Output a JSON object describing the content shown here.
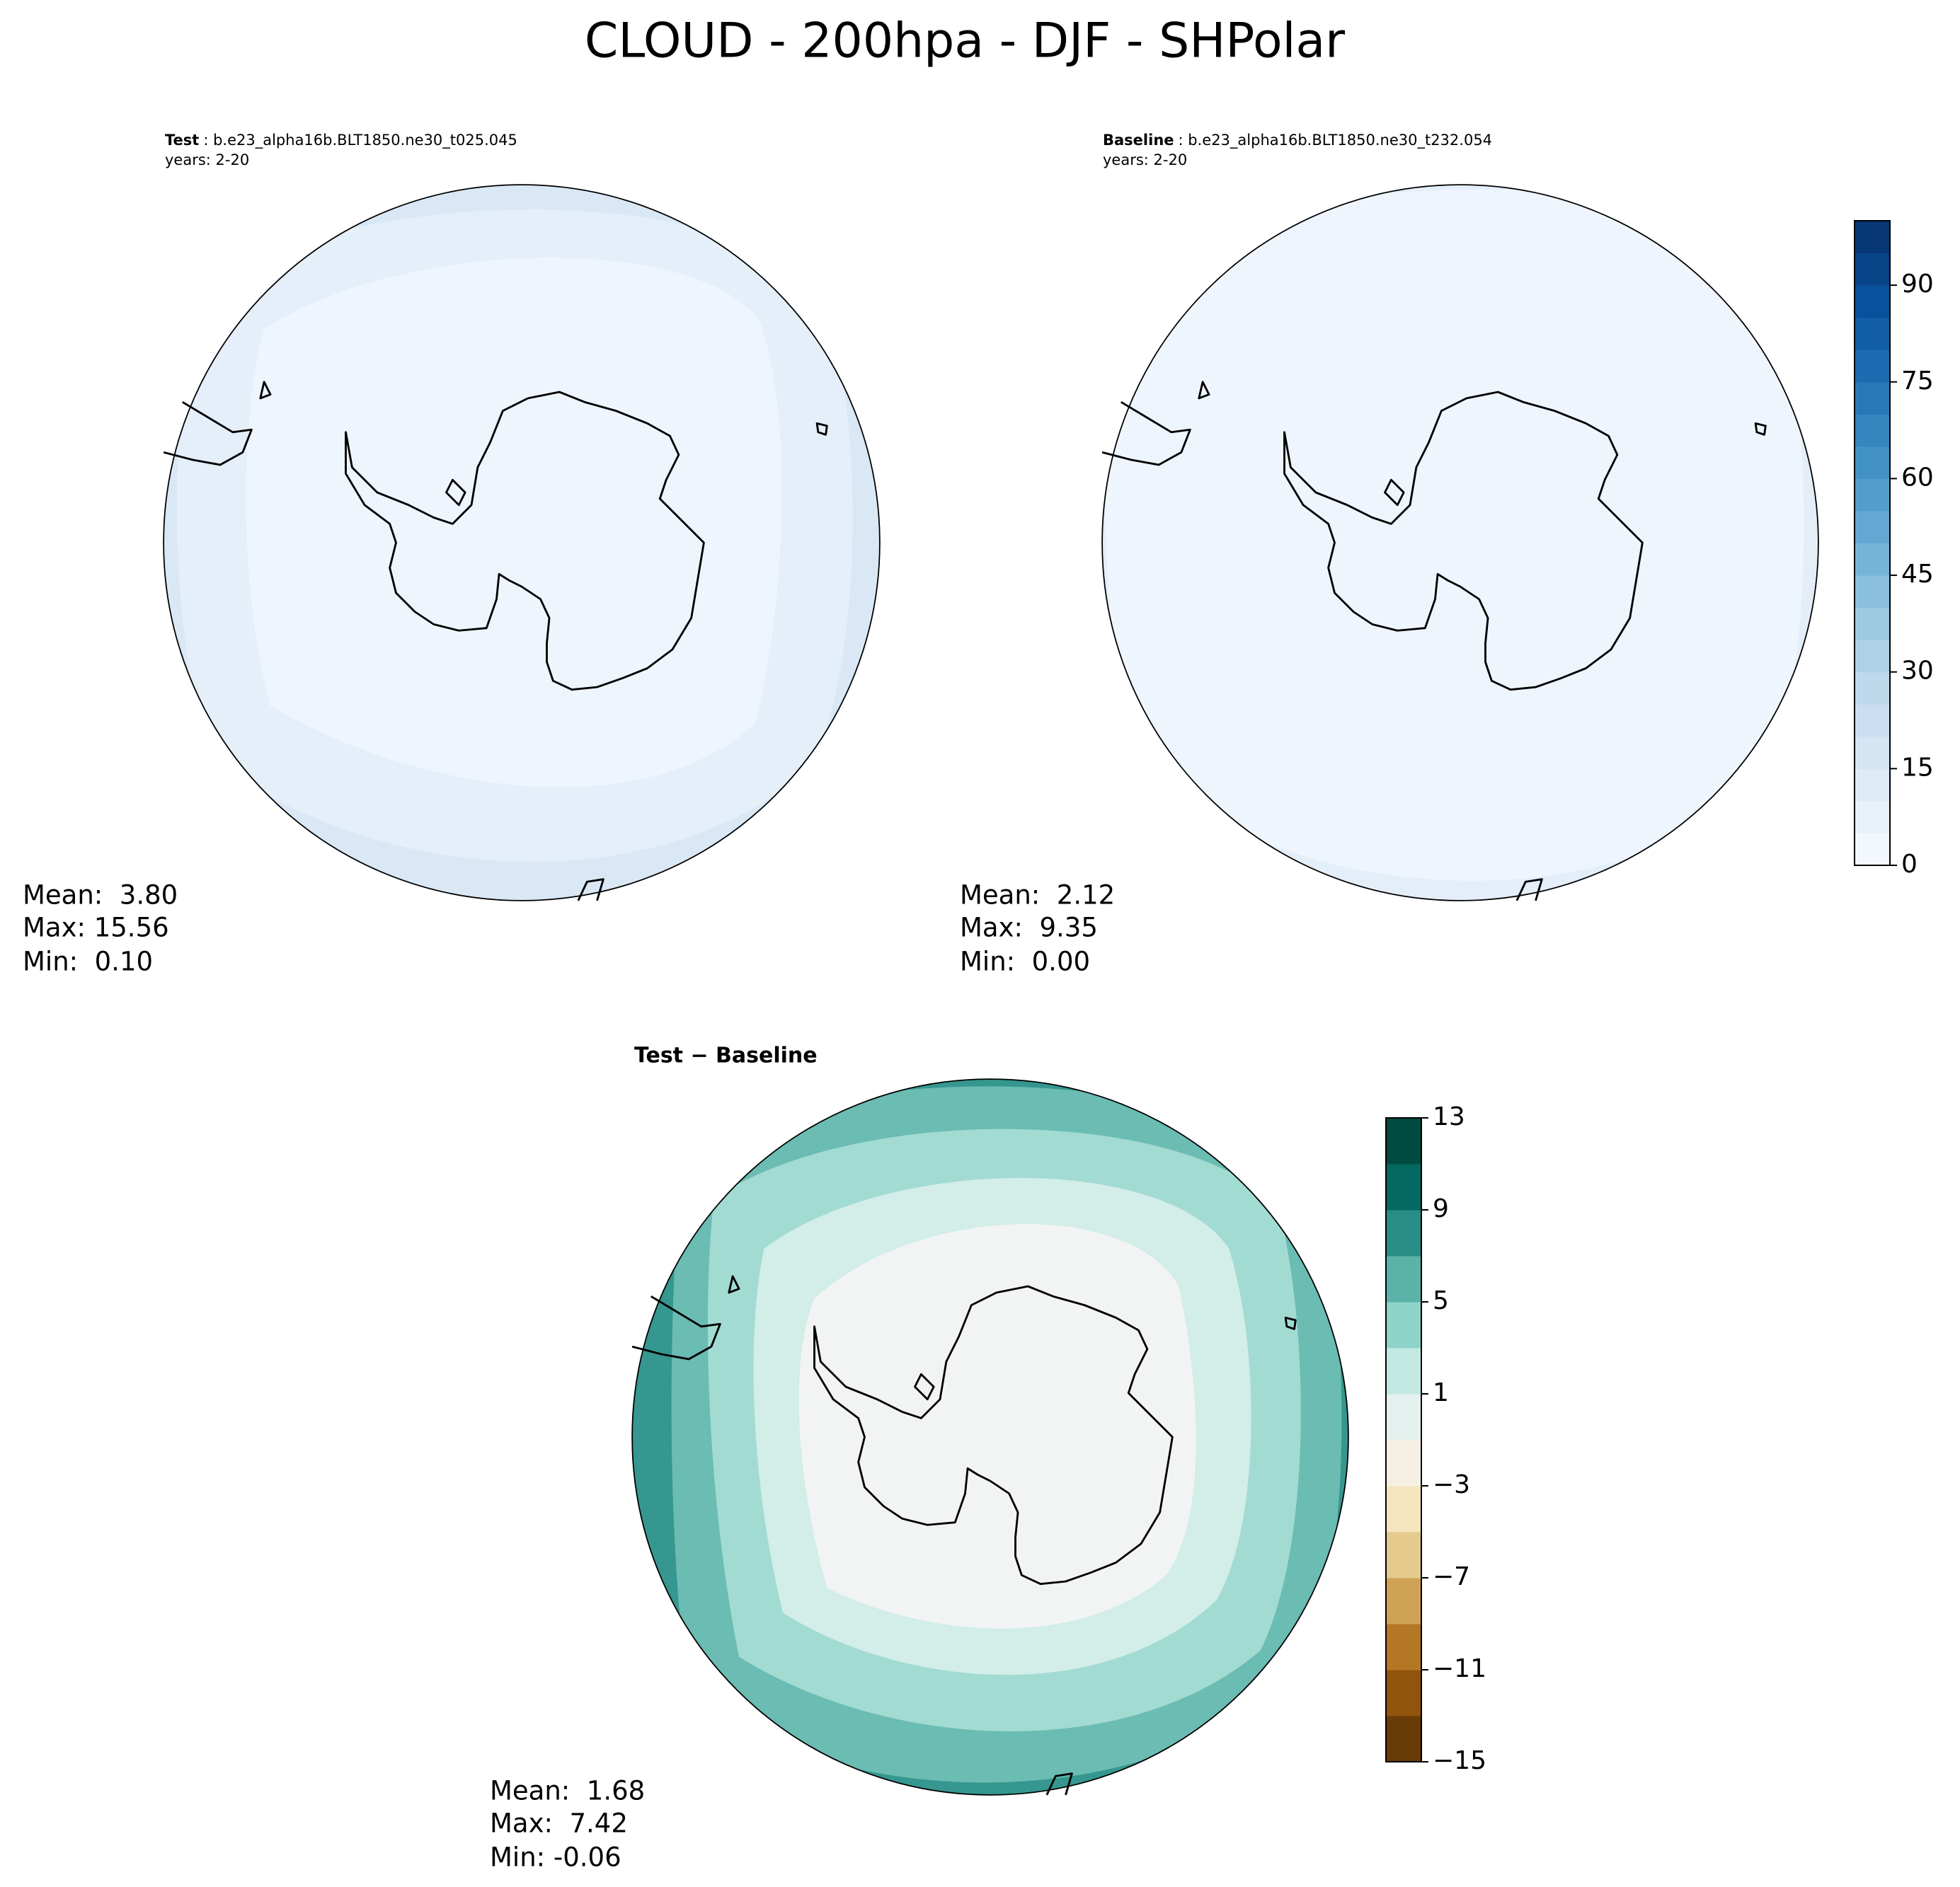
{
  "title": "CLOUD - 200hpa - DJF - SHPolar",
  "panels": [
    {
      "label": "Test",
      "case": ": b.e23_alpha16b.BLT1850.ne30_t025.045",
      "years": "years: 2-20",
      "stats": [
        "Mean:  3.80",
        "Max: 15.56",
        "Min:  0.10"
      ]
    },
    {
      "label": "Baseline",
      "case": ": b.e23_alpha16b.BLT1850.ne30_t232.054",
      "years": "years: 2-20",
      "stats": [
        "Mean:  2.12",
        "Max:  9.35",
        "Min:  0.00"
      ]
    },
    {
      "label": "Test − Baseline",
      "stats": [
        "Mean:  1.68",
        "Max:  7.42",
        "Min: -0.06"
      ]
    }
  ],
  "colorbars": [
    {
      "lim": [
        0,
        100
      ],
      "levels": [
        0,
        5,
        10,
        15,
        20,
        25,
        30,
        35,
        40,
        45,
        50,
        55,
        60,
        65,
        70,
        75,
        80,
        85,
        90,
        95,
        100
      ],
      "ticks": [
        0,
        15,
        30,
        45,
        60,
        75,
        90
      ],
      "colormap": [
        "#f7fbff",
        "#deebf7",
        "#c6dbef",
        "#9ecae1",
        "#6baed6",
        "#4292c6",
        "#2171b5",
        "#08519c",
        "#08306b"
      ]
    },
    {
      "lim": [
        -15,
        13
      ],
      "levels": [
        -15,
        -13,
        -11,
        -9,
        -7,
        -5,
        -3,
        -1,
        1,
        3,
        5,
        7,
        9,
        11,
        13
      ],
      "ticks": [
        {
          "value": -15,
          "label": "−15"
        },
        {
          "value": -11,
          "label": "−11"
        },
        {
          "value": -7,
          "label": "−7"
        },
        {
          "value": -3,
          "label": "−3"
        },
        1,
        5,
        9,
        13
      ],
      "colormap": [
        "#543005",
        "#8c510a",
        "#bf812d",
        "#dfc27d",
        "#f6e8c3",
        "#f5f5f5",
        "#c7eae5",
        "#80cdc1",
        "#35978f",
        "#01665e",
        "#003c30"
      ]
    }
  ]
}
